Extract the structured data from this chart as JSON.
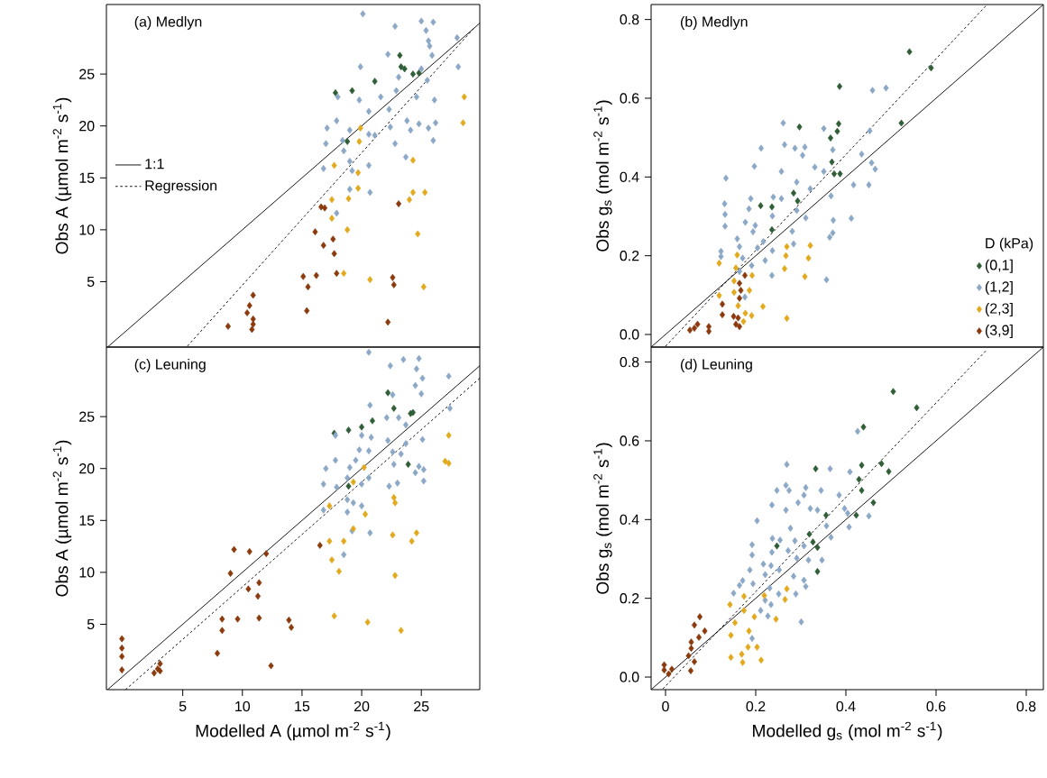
{
  "chart_data": [
    {
      "type": "scatter",
      "title": "(a) Medlyn",
      "ylabel": "Obs A (µmol m$^{-2}$ s$^{-1}$)",
      "xlim": [
        -1.4,
        29.9
      ],
      "ylim": [
        -1.3,
        31.7
      ],
      "yticks": [
        5,
        10,
        15,
        20,
        25
      ],
      "tick_labels": "y",
      "marker": "diamond",
      "legend": "left",
      "series": [
        {
          "color": "#2f5d36",
          "x": [
            23.2,
            23.3,
            23.6,
            21.1,
            19.2,
            17.8,
            24.3,
            24.8,
            18.8
          ],
          "values": [
            26.8,
            25.7,
            25.5,
            24.3,
            23.4,
            23.2,
            25.0,
            25.1,
            18.5
          ]
        },
        {
          "color": "#8ca8c7",
          "x": [
            20.1,
            22.8,
            25.0,
            26.0,
            25.4,
            25.6,
            25.7,
            28.0,
            22.2,
            25.9,
            19.9,
            28.1,
            23.1,
            25.0,
            25.5,
            18.0,
            19.8,
            21.6,
            22.9,
            24.6,
            26.1,
            20.6,
            22.3,
            23.8,
            24.8,
            26.2,
            25.6,
            17.1,
            17.9,
            19.0,
            20.6,
            22.4,
            24.1,
            17.0,
            18.4,
            21.1,
            22.8,
            26.0,
            18.5,
            20.6,
            23.7,
            19.0,
            16.8,
            19.2,
            19.0,
            20.7,
            17.9
          ],
          "values": [
            30.8,
            29.6,
            30.1,
            30.0,
            29.2,
            28.2,
            27.7,
            28.5,
            26.9,
            26.8,
            25.7,
            25.7,
            24.7,
            25.5,
            24.4,
            22.8,
            22.5,
            22.8,
            23.4,
            22.8,
            22.5,
            21.4,
            21.6,
            20.5,
            20.2,
            20.3,
            19.8,
            19.8,
            20.5,
            19.6,
            19.2,
            19.9,
            19.6,
            18.3,
            18.6,
            19.1,
            18.3,
            18.6,
            17.6,
            16.2,
            17.0,
            16.6,
            15.9,
            15.7,
            13.9,
            13.6,
            11.6
          ]
        },
        {
          "color": "#e2a91c",
          "x": [
            28.6,
            28.5,
            24.3,
            19.8,
            19.9,
            17.7,
            19.7,
            19.7,
            18.9,
            17.5,
            24.0,
            24.3,
            25.3,
            17.5,
            18.8,
            24.7,
            18.5,
            20.7,
            25.2
          ],
          "values": [
            22.8,
            20.3,
            16.7,
            18.5,
            19.8,
            16.2,
            15.5,
            14.0,
            13.0,
            12.9,
            12.9,
            13.6,
            13.6,
            11.1,
            10.0,
            9.6,
            5.8,
            5.2,
            4.5
          ]
        },
        {
          "color": "#8a3a0c",
          "x": [
            16.6,
            16.9,
            23.1,
            16.1,
            17.6,
            16.8,
            17.7,
            15.1,
            16.2,
            17.9,
            22.6,
            22.7,
            15.5,
            15.4,
            22.2,
            10.9,
            10.6,
            10.4,
            10.9,
            10.9,
            10.8,
            8.8
          ],
          "values": [
            12.2,
            12.1,
            12.5,
            9.8,
            9.1,
            8.5,
            7.7,
            5.5,
            5.6,
            5.8,
            5.4,
            4.7,
            4.5,
            2.2,
            1.1,
            3.7,
            2.7,
            2.0,
            1.4,
            0.9,
            0.4,
            0.7
          ]
        },
        {
          "type": "line",
          "name": "1:1",
          "color": "#000000",
          "line_style": "solid",
          "marker": "none",
          "x": [
            -1.3,
            29.9
          ],
          "values": [
            -1.3,
            29.9
          ]
        },
        {
          "type": "line",
          "name": "Regression",
          "color": "#000000",
          "line_style": "dashed",
          "marker": "none",
          "x": [
            5.4,
            29.4
          ],
          "values": [
            -1.2,
            29.4
          ]
        }
      ]
    },
    {
      "type": "scatter",
      "title": "(b) Medlyn",
      "ylabel": "Obs g$_{s}$ (mol m$^{-2}$ s$^{-1}$)",
      "xlim": [
        -0.032,
        0.838
      ],
      "ylim": [
        -0.032,
        0.838
      ],
      "yticks": [
        {
          "value": 0,
          "label": "0.0"
        },
        0.2,
        0.4,
        0.6,
        0.8
      ],
      "tick_labels": "y",
      "marker": "diamond",
      "legend": "right",
      "legend_title": "D (kPa)",
      "series": [
        {
          "name": "(0,1]",
          "color": "#2f5d36",
          "x": [
            0.541,
            0.589,
            0.386,
            0.523,
            0.297,
            0.384,
            0.381,
            0.366,
            0.369,
            0.374,
            0.387,
            0.284,
            0.293,
            0.236,
            0.211,
            0.236
          ],
          "values": [
            0.718,
            0.677,
            0.63,
            0.537,
            0.527,
            0.535,
            0.516,
            0.499,
            0.438,
            0.408,
            0.408,
            0.359,
            0.339,
            0.324,
            0.327,
            0.266
          ]
        },
        {
          "name": "(1,2]",
          "color": "#8ca8c7",
          "x": [
            0.261,
            0.351,
            0.459,
            0.489,
            0.453,
            0.212,
            0.264,
            0.287,
            0.309,
            0.371,
            0.435,
            0.304,
            0.197,
            0.257,
            0.331,
            0.351,
            0.457,
            0.465,
            0.134,
            0.291,
            0.321,
            0.417,
            0.451,
            0.367,
            0.189,
            0.239,
            0.257,
            0.131,
            0.185,
            0.132,
            0.237,
            0.291,
            0.311,
            0.412,
            0.372,
            0.177,
            0.199,
            0.132,
            0.194,
            0.281,
            0.371,
            0.364,
            0.159,
            0.217,
            0.284,
            0.164,
            0.204,
            0.237,
            0.123,
            0.123,
            0.221,
            0.171,
            0.191,
            0.236,
            0.357,
            0.176,
            0.164
          ],
          "values": [
            0.537,
            0.523,
            0.62,
            0.626,
            0.517,
            0.473,
            0.482,
            0.473,
            0.476,
            0.469,
            0.458,
            0.455,
            0.427,
            0.414,
            0.425,
            0.414,
            0.436,
            0.42,
            0.397,
            0.387,
            0.37,
            0.38,
            0.38,
            0.352,
            0.345,
            0.349,
            0.345,
            0.332,
            0.319,
            0.305,
            0.301,
            0.315,
            0.296,
            0.295,
            0.29,
            0.285,
            0.277,
            0.275,
            0.261,
            0.262,
            0.258,
            0.247,
            0.243,
            0.236,
            0.23,
            0.223,
            0.22,
            0.213,
            0.211,
            0.198,
            0.188,
            0.194,
            0.175,
            0.15,
            0.139,
            0.095,
            0.16
          ]
        },
        {
          "name": "(2,3]",
          "color": "#e2a91c",
          "x": [
            0.321,
            0.317,
            0.269,
            0.267,
            0.264,
            0.309,
            0.159,
            0.119,
            0.156,
            0.192,
            0.152,
            0.186,
            0.152,
            0.119,
            0.161,
            0.216,
            0.191,
            0.177,
            0.173,
            0.269
          ],
          "values": [
            0.226,
            0.194,
            0.223,
            0.2,
            0.167,
            0.147,
            0.202,
            0.181,
            0.169,
            0.15,
            0.136,
            0.112,
            0.107,
            0.099,
            0.073,
            0.071,
            0.048,
            0.054,
            0.033,
            0.041
          ]
        },
        {
          "name": "(3,9]",
          "color": "#8a3a0c",
          "x": [
            0.164,
            0.176,
            0.167,
            0.164,
            0.126,
            0.126,
            0.151,
            0.161,
            0.156,
            0.164,
            0.096,
            0.096,
            0.071,
            0.064,
            0.054
          ],
          "values": [
            0.13,
            0.15,
            0.112,
            0.092,
            0.077,
            0.05,
            0.046,
            0.042,
            0.026,
            0.02,
            0.02,
            0.008,
            0.026,
            0.016,
            0.011
          ]
        },
        {
          "type": "line",
          "color": "#000000",
          "line_style": "solid",
          "marker": "none",
          "x": [
            -0.032,
            0.838
          ],
          "values": [
            -0.032,
            0.838
          ]
        },
        {
          "type": "line",
          "color": "#000000",
          "line_style": "dashed",
          "marker": "none",
          "x": [
            0.0,
            0.71
          ],
          "values": [
            -0.03,
            0.834
          ]
        }
      ]
    },
    {
      "type": "scatter",
      "title": "(c) Leuning",
      "xlabel": "Modelled A (µmol m$^{-2}$ s$^{-1}$)",
      "ylabel": "Obs A (µmol m$^{-2}$ s$^{-1}$)",
      "xlim": [
        -1.4,
        29.9
      ],
      "ylim": [
        -1.3,
        31.7
      ],
      "xticks": [
        5,
        10,
        15,
        20,
        25
      ],
      "yticks": [
        5,
        10,
        15,
        20,
        25
      ],
      "marker": "diamond",
      "series": [
        {
          "color": "#2f5d36",
          "x": [
            22.2,
            22.7,
            24.1,
            24.3,
            20.9,
            20.0,
            18.9,
            17.7,
            23.9,
            18.9
          ],
          "values": [
            27.3,
            25.8,
            25.3,
            25.4,
            24.6,
            24.0,
            23.7,
            23.4,
            20.4,
            18.3
          ]
        },
        {
          "color": "#8ca8c7",
          "x": [
            20.6,
            22.4,
            23.5,
            24.8,
            24.6,
            25.1,
            27.3,
            24.5,
            22.6,
            25.0,
            20.7,
            27.4,
            22.1,
            23.1,
            23.7,
            20.0,
            20.8,
            22.2,
            25.1,
            23.7,
            17.8,
            19.8,
            20.6,
            22.6,
            23.3,
            17.8,
            19.5,
            22.7,
            24.8,
            25.2,
            17.0,
            19.0,
            20.6,
            18.8,
            16.8,
            17.9,
            20.0,
            22.3,
            23.0,
            25.2,
            24.5,
            18.8,
            19.3,
            20.0,
            16.8,
            18.8,
            19.2,
            20.7,
            18.5
          ],
          "values": [
            31.2,
            29.9,
            30.5,
            30.6,
            29.6,
            28.7,
            28.9,
            28.0,
            27.1,
            27.2,
            26.1,
            25.8,
            24.9,
            24.9,
            24.2,
            23.2,
            23.0,
            22.7,
            22.8,
            22.4,
            23.2,
            21.8,
            21.7,
            21.6,
            21.4,
            20.8,
            20.8,
            20.4,
            20.2,
            19.9,
            20.0,
            20.1,
            19.1,
            19.1,
            18.5,
            18.2,
            18.5,
            18.3,
            18.6,
            18.8,
            19.6,
            17.0,
            16.7,
            16.4,
            16.0,
            15.8,
            14.0,
            13.8,
            11.7
          ]
        },
        {
          "color": "#e2a91c",
          "x": [
            27.3,
            27.0,
            27.3,
            20.2,
            19.3,
            22.7,
            22.8,
            17.3,
            20.3,
            19.3,
            17.3,
            18.5,
            22.6,
            24.6,
            24.2,
            17.5,
            18.1,
            22.8,
            17.7,
            20.5,
            23.3
          ],
          "values": [
            23.2,
            20.7,
            20.5,
            20.1,
            18.7,
            17.2,
            16.7,
            16.4,
            15.6,
            14.2,
            13.0,
            13.0,
            13.6,
            13.8,
            13.0,
            11.2,
            10.1,
            9.7,
            5.8,
            5.2,
            4.4
          ]
        },
        {
          "color": "#8a3a0c",
          "x": [
            16.5,
            9.3,
            10.6,
            12.0,
            9.0,
            10.5,
            11.4,
            11.3,
            8.3,
            9.6,
            11.4,
            13.9,
            14.1,
            8.3,
            7.9,
            12.4,
            -0.1,
            -0.1,
            -0.1,
            -0.1,
            3.1,
            2.9,
            2.6,
            3.1
          ],
          "values": [
            12.6,
            12.2,
            12.0,
            11.8,
            9.9,
            8.4,
            9.0,
            7.7,
            5.5,
            5.5,
            5.6,
            5.4,
            4.7,
            4.4,
            2.2,
            1.0,
            3.6,
            2.7,
            1.9,
            0.6,
            1.2,
            0.7,
            0.3,
            0.5
          ]
        },
        {
          "type": "line",
          "color": "#000000",
          "line_style": "solid",
          "marker": "none",
          "x": [
            -1.3,
            29.9
          ],
          "values": [
            -1.3,
            29.9
          ]
        },
        {
          "type": "line",
          "color": "#000000",
          "line_style": "dashed",
          "marker": "none",
          "x": [
            0.2,
            29.9
          ],
          "values": [
            -1.3,
            28.7
          ]
        }
      ]
    },
    {
      "type": "scatter",
      "title": "(d) Leuning",
      "xlabel": "Modelled g$_{s}$ (mol m$^{-2}$ s$^{-1}$)",
      "ylabel": "Obs g$_{s}$ (mol m$^{-2}$ s$^{-1}$)",
      "xlim": [
        -0.032,
        0.838
      ],
      "ylim": [
        -0.032,
        0.838
      ],
      "xticks": [
        0,
        0.2,
        0.4,
        0.6,
        0.8
      ],
      "yticks": [
        {
          "value": 0,
          "label": "0.0"
        },
        0.2,
        0.4,
        0.6,
        0.8
      ],
      "marker": "diamond",
      "series": [
        {
          "color": "#2f5d36",
          "x": [
            0.505,
            0.557,
            0.439,
            0.333,
            0.435,
            0.479,
            0.495,
            0.429,
            0.435,
            0.461,
            0.423,
            0.356,
            0.319,
            0.327,
            0.337,
            0.247,
            0.337
          ],
          "values": [
            0.725,
            0.684,
            0.635,
            0.529,
            0.538,
            0.542,
            0.522,
            0.502,
            0.474,
            0.443,
            0.411,
            0.411,
            0.363,
            0.343,
            0.329,
            0.333,
            0.268
          ]
        },
        {
          "color": "#8ca8c7",
          "x": [
            0.426,
            0.269,
            0.365,
            0.409,
            0.267,
            0.247,
            0.274,
            0.311,
            0.345,
            0.385,
            0.307,
            0.236,
            0.294,
            0.267,
            0.321,
            0.337,
            0.397,
            0.404,
            0.451,
            0.203,
            0.277,
            0.357,
            0.407,
            0.237,
            0.254,
            0.287,
            0.367,
            0.192,
            0.236,
            0.272,
            0.307,
            0.192,
            0.291,
            0.317,
            0.347,
            0.217,
            0.234,
            0.187,
            0.252,
            0.221,
            0.284,
            0.171,
            0.307,
            0.164,
            0.194,
            0.311,
            0.151,
            0.231,
            0.251,
            0.289,
            0.221,
            0.234,
            0.211,
            0.227,
            0.301,
            0.192
          ],
          "values": [
            0.624,
            0.54,
            0.529,
            0.521,
            0.487,
            0.474,
            0.474,
            0.481,
            0.474,
            0.462,
            0.462,
            0.437,
            0.443,
            0.424,
            0.428,
            0.424,
            0.428,
            0.416,
            0.409,
            0.397,
            0.378,
            0.384,
            0.381,
            0.352,
            0.348,
            0.346,
            0.355,
            0.336,
            0.317,
            0.321,
            0.333,
            0.31,
            0.302,
            0.297,
            0.297,
            0.287,
            0.283,
            0.272,
            0.272,
            0.26,
            0.256,
            0.245,
            0.246,
            0.233,
            0.237,
            0.23,
            0.213,
            0.226,
            0.211,
            0.211,
            0.195,
            0.184,
            0.169,
            0.155,
            0.14,
            0.098
          ]
        },
        {
          "color": "#e2a91c",
          "x": [
            0.174,
            0.143,
            0.269,
            0.265,
            0.219,
            0.174,
            0.197,
            0.245,
            0.154,
            0.145,
            0.185,
            0.183,
            0.203,
            0.169,
            0.145,
            0.171,
            0.212
          ],
          "values": [
            0.205,
            0.184,
            0.224,
            0.197,
            0.207,
            0.169,
            0.153,
            0.147,
            0.138,
            0.106,
            0.117,
            0.076,
            0.076,
            0.058,
            0.05,
            0.037,
            0.043
          ]
        },
        {
          "color": "#8a3a0c",
          "x": [
            0.076,
            0.064,
            0.087,
            0.074,
            0.057,
            0.057,
            0.051,
            0.064,
            0.056,
            -0.003,
            -0.003,
            0.014,
            0.007
          ],
          "values": [
            0.153,
            0.132,
            0.117,
            0.101,
            0.089,
            0.073,
            0.054,
            0.039,
            0.016,
            0.031,
            0.018,
            0.02,
            0.008
          ]
        },
        {
          "type": "line",
          "color": "#000000",
          "line_style": "solid",
          "marker": "none",
          "x": [
            -0.032,
            0.838
          ],
          "values": [
            -0.032,
            0.838
          ]
        },
        {
          "type": "line",
          "color": "#000000",
          "line_style": "dashed",
          "marker": "none",
          "x": [
            -0.006,
            0.71
          ],
          "values": [
            -0.03,
            0.828
          ]
        }
      ]
    }
  ]
}
